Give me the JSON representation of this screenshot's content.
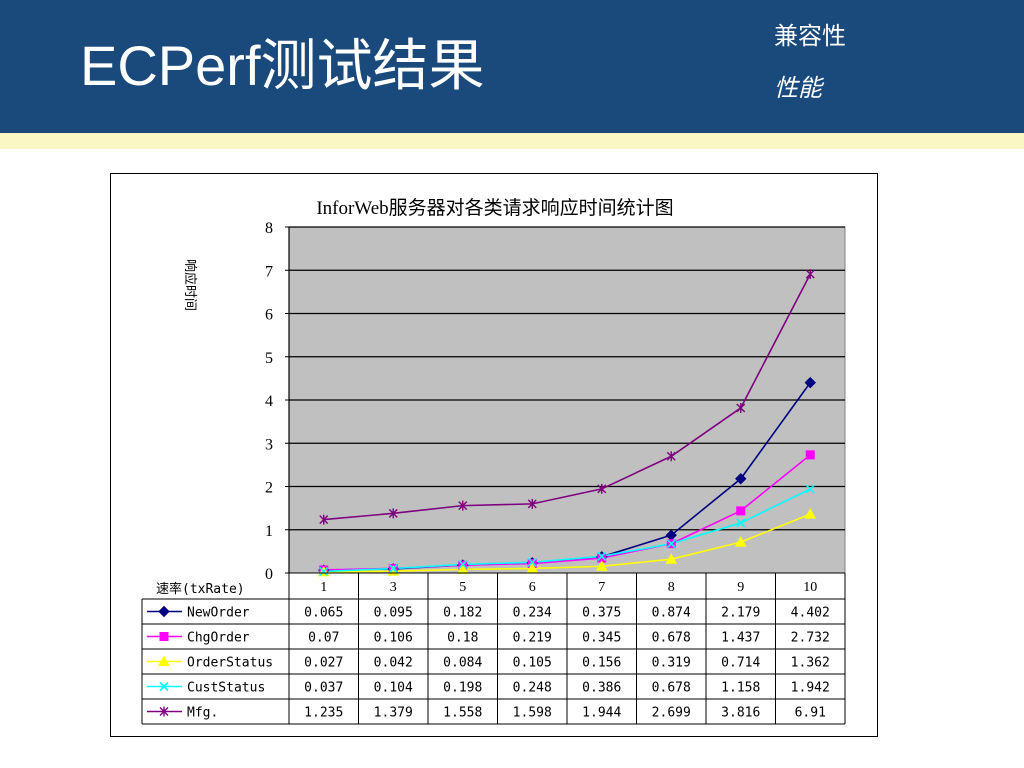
{
  "header": {
    "title": "ECPerf测试结果",
    "nav_items": [
      "兼容性",
      "性能"
    ]
  },
  "colors": {
    "header_bg": "#1a4a7c",
    "stripe": "#fbf7c5",
    "plot_bg": "#c0c0c0"
  },
  "chart_data": {
    "type": "line",
    "title": "InforWeb服务器对各类请求响应时间统计图",
    "ylabel": "响应时间",
    "xlabel": "速率(txRate)",
    "ylim": [
      0,
      8
    ],
    "yticks": [
      "0",
      "1",
      "2",
      "3",
      "4",
      "5",
      "6",
      "7",
      "8"
    ],
    "grid": true,
    "legend": "data-table",
    "categories": [
      "1",
      "3",
      "5",
      "6",
      "7",
      "8",
      "9",
      "10"
    ],
    "series": [
      {
        "name": "NewOrder",
        "color": "#000080",
        "marker": "diamond",
        "values": [
          0.065,
          0.095,
          0.182,
          0.234,
          0.375,
          0.874,
          2.179,
          4.402
        ],
        "labels": [
          "0.065",
          "0.095",
          "0.182",
          "0.234",
          "0.375",
          "0.874",
          "2.179",
          "4.402"
        ]
      },
      {
        "name": "ChgOrder",
        "color": "#ff00ff",
        "marker": "square",
        "values": [
          0.07,
          0.106,
          0.18,
          0.219,
          0.345,
          0.678,
          1.437,
          2.732
        ],
        "labels": [
          "0.07",
          "0.106",
          "0.18",
          "0.219",
          "0.345",
          "0.678",
          "1.437",
          "2.732"
        ]
      },
      {
        "name": "OrderStatus",
        "color": "#ffff00",
        "marker": "triangle",
        "values": [
          0.027,
          0.042,
          0.084,
          0.105,
          0.156,
          0.319,
          0.714,
          1.362
        ],
        "labels": [
          "0.027",
          "0.042",
          "0.084",
          "0.105",
          "0.156",
          "0.319",
          "0.714",
          "1.362"
        ]
      },
      {
        "name": "CustStatus",
        "color": "#00ffff",
        "marker": "x",
        "values": [
          0.037,
          0.104,
          0.198,
          0.248,
          0.386,
          0.678,
          1.158,
          1.942
        ],
        "labels": [
          "0.037",
          "0.104",
          "0.198",
          "0.248",
          "0.386",
          "0.678",
          "1.158",
          "1.942"
        ]
      },
      {
        "name": "Mfg.",
        "color": "#800080",
        "marker": "asterisk",
        "values": [
          1.235,
          1.379,
          1.558,
          1.598,
          1.944,
          2.699,
          3.816,
          6.91
        ],
        "labels": [
          "1.235",
          "1.379",
          "1.558",
          "1.598",
          "1.944",
          "2.699",
          "3.816",
          "6.91"
        ]
      }
    ]
  }
}
